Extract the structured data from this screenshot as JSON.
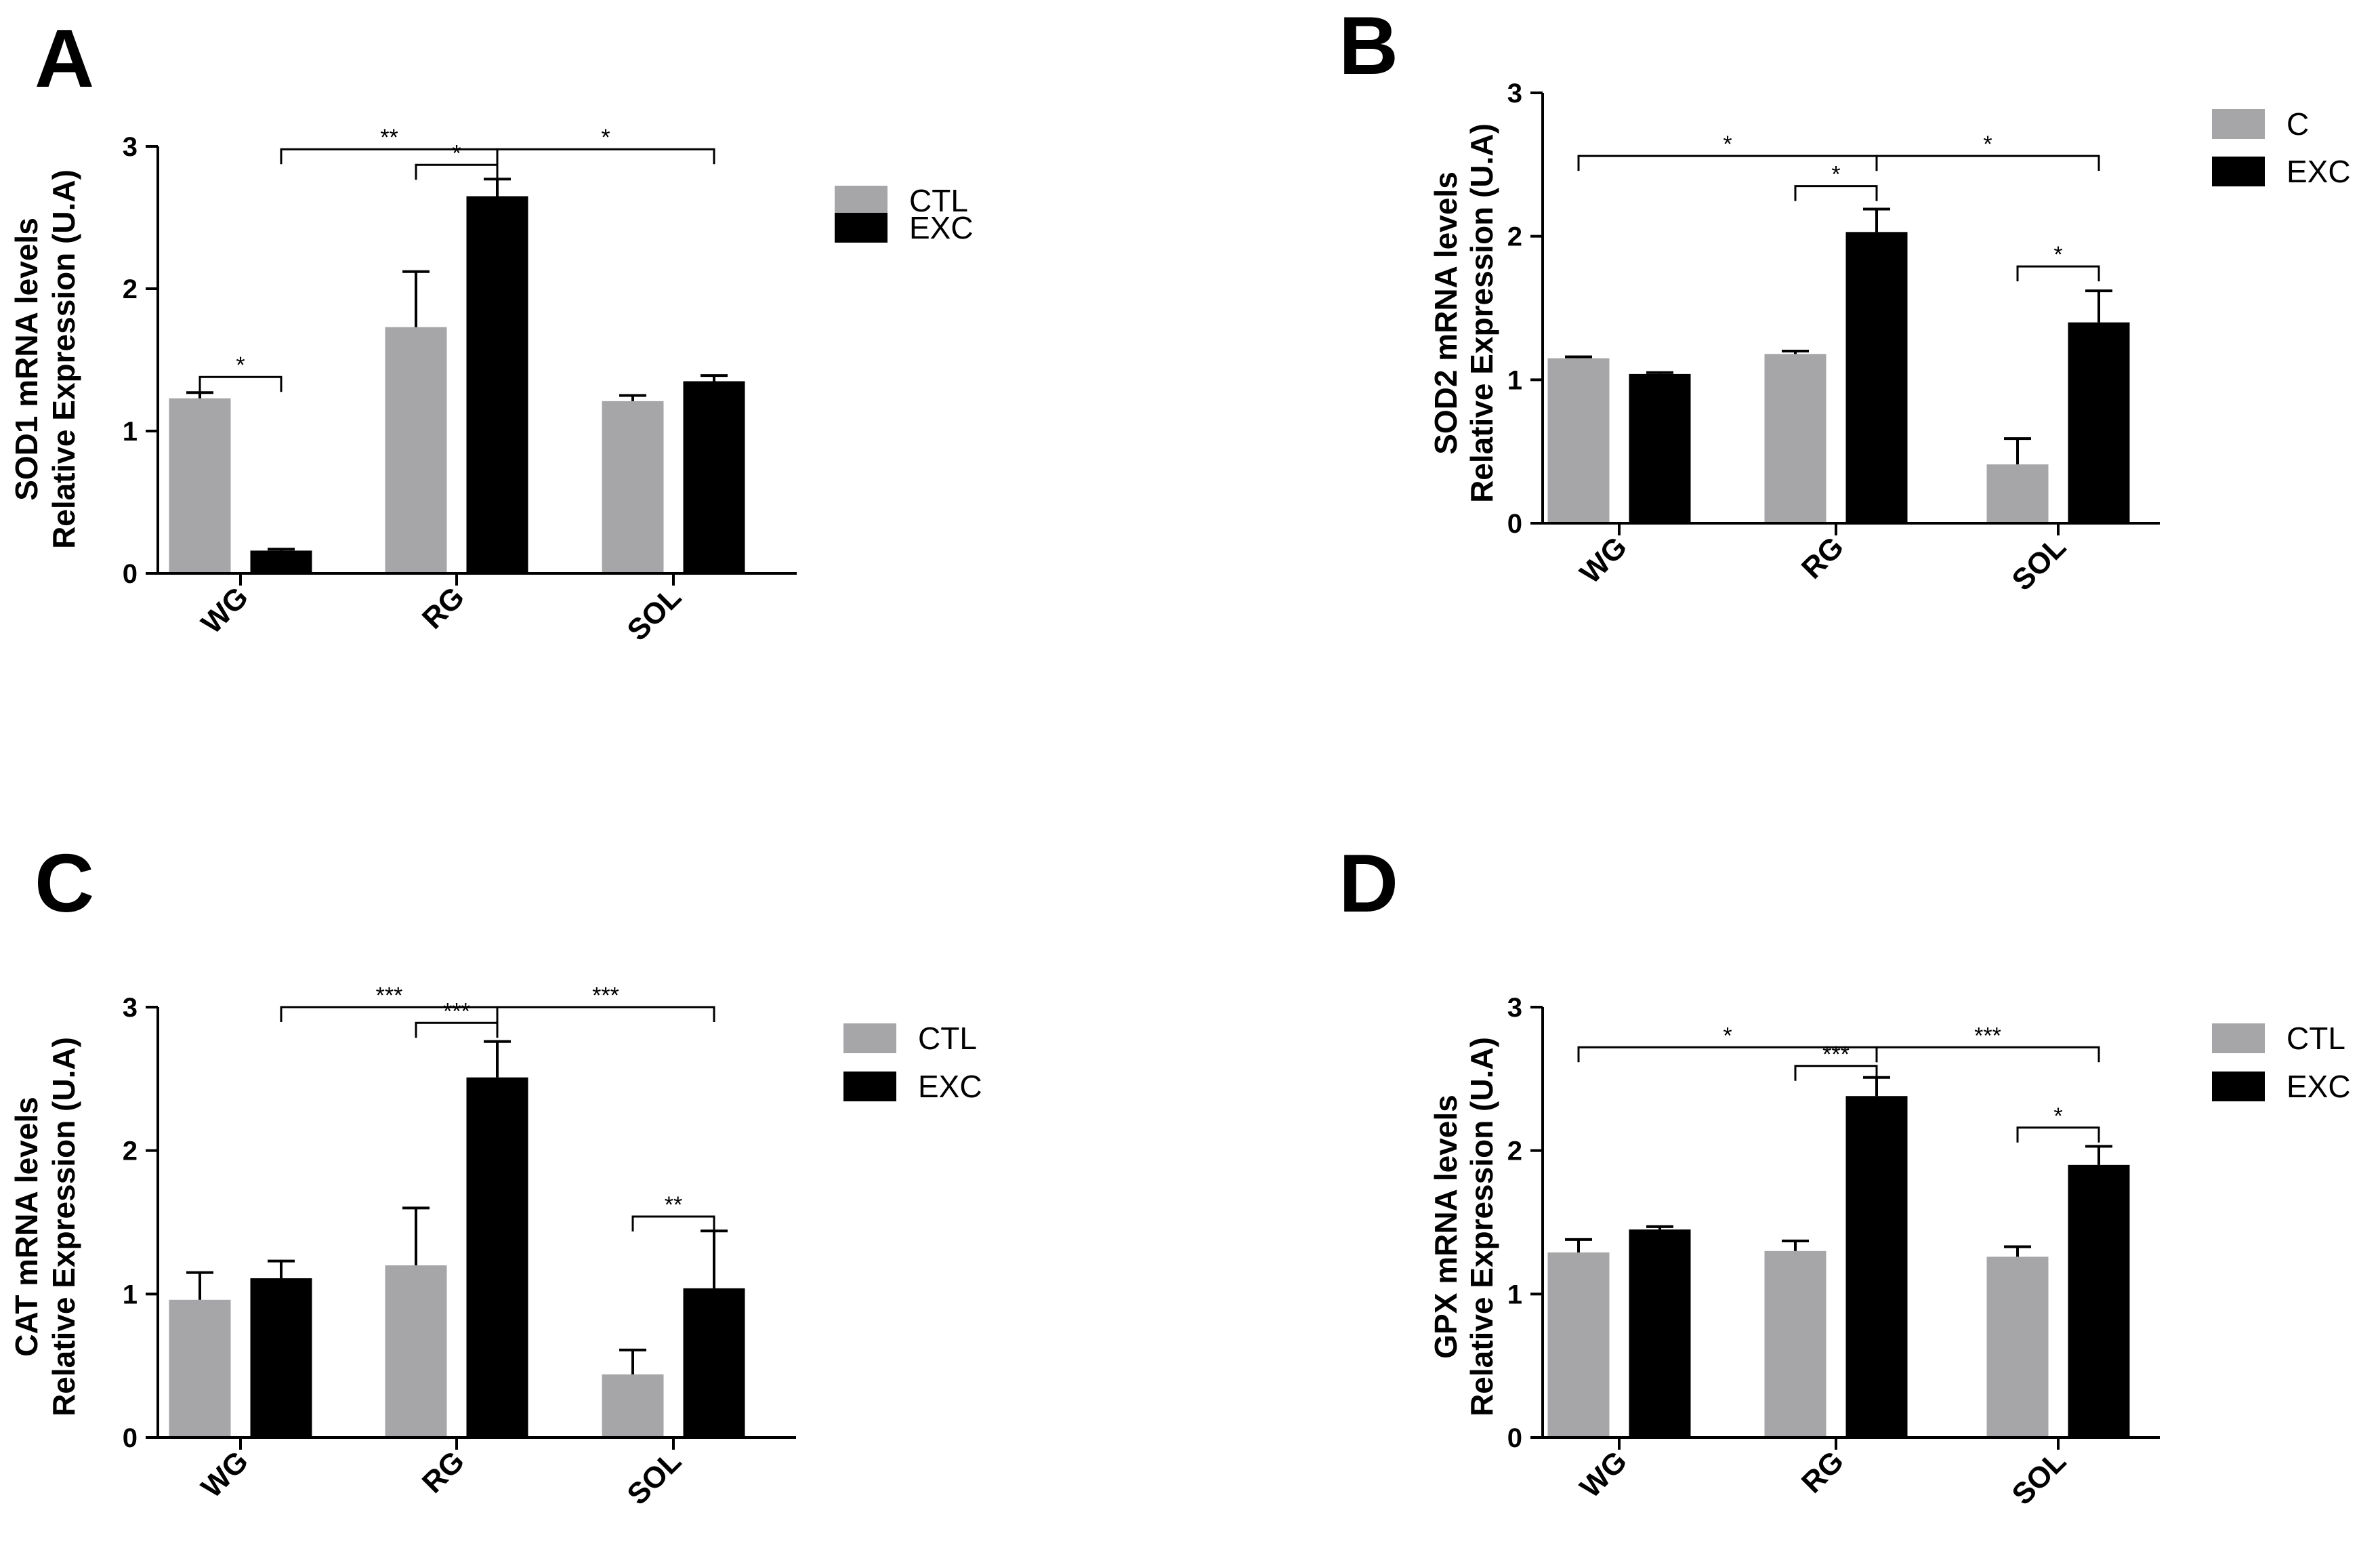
{
  "figure": {
    "colors": {
      "ctl": "#a6a6a8",
      "exc": "#000000"
    }
  },
  "chart_data": [
    {
      "type": "bar",
      "panel_letter": "A",
      "title": "",
      "ylabel_line1": "SOD1 mRNA levels",
      "ylabel_line2": "Relative Expression (U.A)",
      "categories": [
        "WG",
        "RG",
        "SOL"
      ],
      "ylim": [
        0,
        3
      ],
      "yticks": [
        "0",
        "1",
        "2",
        "3"
      ],
      "legend": [
        "CTL",
        "EXC"
      ],
      "series": [
        {
          "name": "CTL",
          "values": [
            1.23,
            1.73,
            1.21
          ],
          "errors": [
            0.04,
            0.39,
            0.04
          ]
        },
        {
          "name": "EXC",
          "values": [
            0.16,
            2.65,
            1.35
          ],
          "errors": [
            0.01,
            0.12,
            0.04
          ]
        }
      ],
      "brackets": [
        {
          "from": [
            0,
            0
          ],
          "to": [
            0,
            1
          ],
          "y": 1.38,
          "label": "*"
        },
        {
          "from": [
            0,
            1
          ],
          "to": [
            1,
            1
          ],
          "y": 2.98,
          "label": "**"
        },
        {
          "from": [
            1,
            0
          ],
          "to": [
            1,
            1
          ],
          "y": 2.87,
          "label": "*"
        },
        {
          "from": [
            1,
            1
          ],
          "to": [
            2,
            1
          ],
          "y": 2.98,
          "label": "*"
        }
      ]
    },
    {
      "type": "bar",
      "panel_letter": "B",
      "title": "",
      "ylabel_line1": "SOD2 mRNA levels",
      "ylabel_line2": "Relative Expression (U.A)",
      "categories": [
        "WG",
        "RG",
        "SOL"
      ],
      "ylim": [
        0,
        3
      ],
      "yticks": [
        "0",
        "1",
        "2",
        "3"
      ],
      "legend": [
        "C",
        "EXC"
      ],
      "series": [
        {
          "name": "C",
          "values": [
            1.15,
            1.18,
            0.41
          ],
          "errors": [
            0.01,
            0.02,
            0.18
          ]
        },
        {
          "name": "EXC",
          "values": [
            1.04,
            2.03,
            1.4
          ],
          "errors": [
            0.01,
            0.16,
            0.22
          ]
        }
      ],
      "brackets": [
        {
          "from": [
            0,
            0
          ],
          "to": [
            1,
            1
          ],
          "y": 2.56,
          "label": "*"
        },
        {
          "from": [
            1,
            0
          ],
          "to": [
            1,
            1
          ],
          "y": 2.35,
          "label": "*"
        },
        {
          "from": [
            1,
            1
          ],
          "to": [
            2,
            1
          ],
          "y": 2.56,
          "label": "*"
        },
        {
          "from": [
            2,
            0
          ],
          "to": [
            2,
            1
          ],
          "y": 1.79,
          "label": "*"
        }
      ]
    },
    {
      "type": "bar",
      "panel_letter": "C",
      "title": "",
      "ylabel_line1": "CAT mRNA levels",
      "ylabel_line2": "Relative Expression (U.A)",
      "categories": [
        "WG",
        "RG",
        "SOL"
      ],
      "ylim": [
        0,
        3
      ],
      "yticks": [
        "0",
        "1",
        "2",
        "3"
      ],
      "legend": [
        "CTL",
        "EXC"
      ],
      "series": [
        {
          "name": "CTL",
          "values": [
            0.96,
            1.2,
            0.44
          ],
          "errors": [
            0.19,
            0.4,
            0.17
          ]
        },
        {
          "name": "EXC",
          "values": [
            1.11,
            2.51,
            1.04
          ],
          "errors": [
            0.12,
            0.25,
            0.4
          ]
        }
      ],
      "brackets": [
        {
          "from": [
            0,
            1
          ],
          "to": [
            1,
            1
          ],
          "y": 3.0,
          "label": "***"
        },
        {
          "from": [
            1,
            0
          ],
          "to": [
            1,
            1
          ],
          "y": 2.89,
          "label": "***"
        },
        {
          "from": [
            1,
            1
          ],
          "to": [
            2,
            1
          ],
          "y": 3.0,
          "label": "***"
        },
        {
          "from": [
            2,
            0
          ],
          "to": [
            2,
            1
          ],
          "y": 1.54,
          "label": "**"
        }
      ]
    },
    {
      "type": "bar",
      "panel_letter": "D",
      "title": "",
      "ylabel_line1": "GPX mRNA levels",
      "ylabel_line2": "Relative Expression (U.A)",
      "categories": [
        "WG",
        "RG",
        "SOL"
      ],
      "ylim": [
        0,
        3
      ],
      "yticks": [
        "0",
        "1",
        "2",
        "3"
      ],
      "legend": [
        "CTL",
        "EXC"
      ],
      "series": [
        {
          "name": "CTL",
          "values": [
            1.29,
            1.3,
            1.26
          ],
          "errors": [
            0.09,
            0.07,
            0.07
          ]
        },
        {
          "name": "EXC",
          "values": [
            1.45,
            2.38,
            1.9
          ],
          "errors": [
            0.02,
            0.13,
            0.13
          ]
        }
      ],
      "brackets": [
        {
          "from": [
            0,
            0
          ],
          "to": [
            1,
            1
          ],
          "y": 2.72,
          "label": "*"
        },
        {
          "from": [
            1,
            0
          ],
          "to": [
            1,
            1
          ],
          "y": 2.59,
          "label": "***"
        },
        {
          "from": [
            1,
            1
          ],
          "to": [
            2,
            1
          ],
          "y": 2.72,
          "label": "***"
        },
        {
          "from": [
            2,
            0
          ],
          "to": [
            2,
            1
          ],
          "y": 2.16,
          "label": "*"
        }
      ]
    }
  ]
}
